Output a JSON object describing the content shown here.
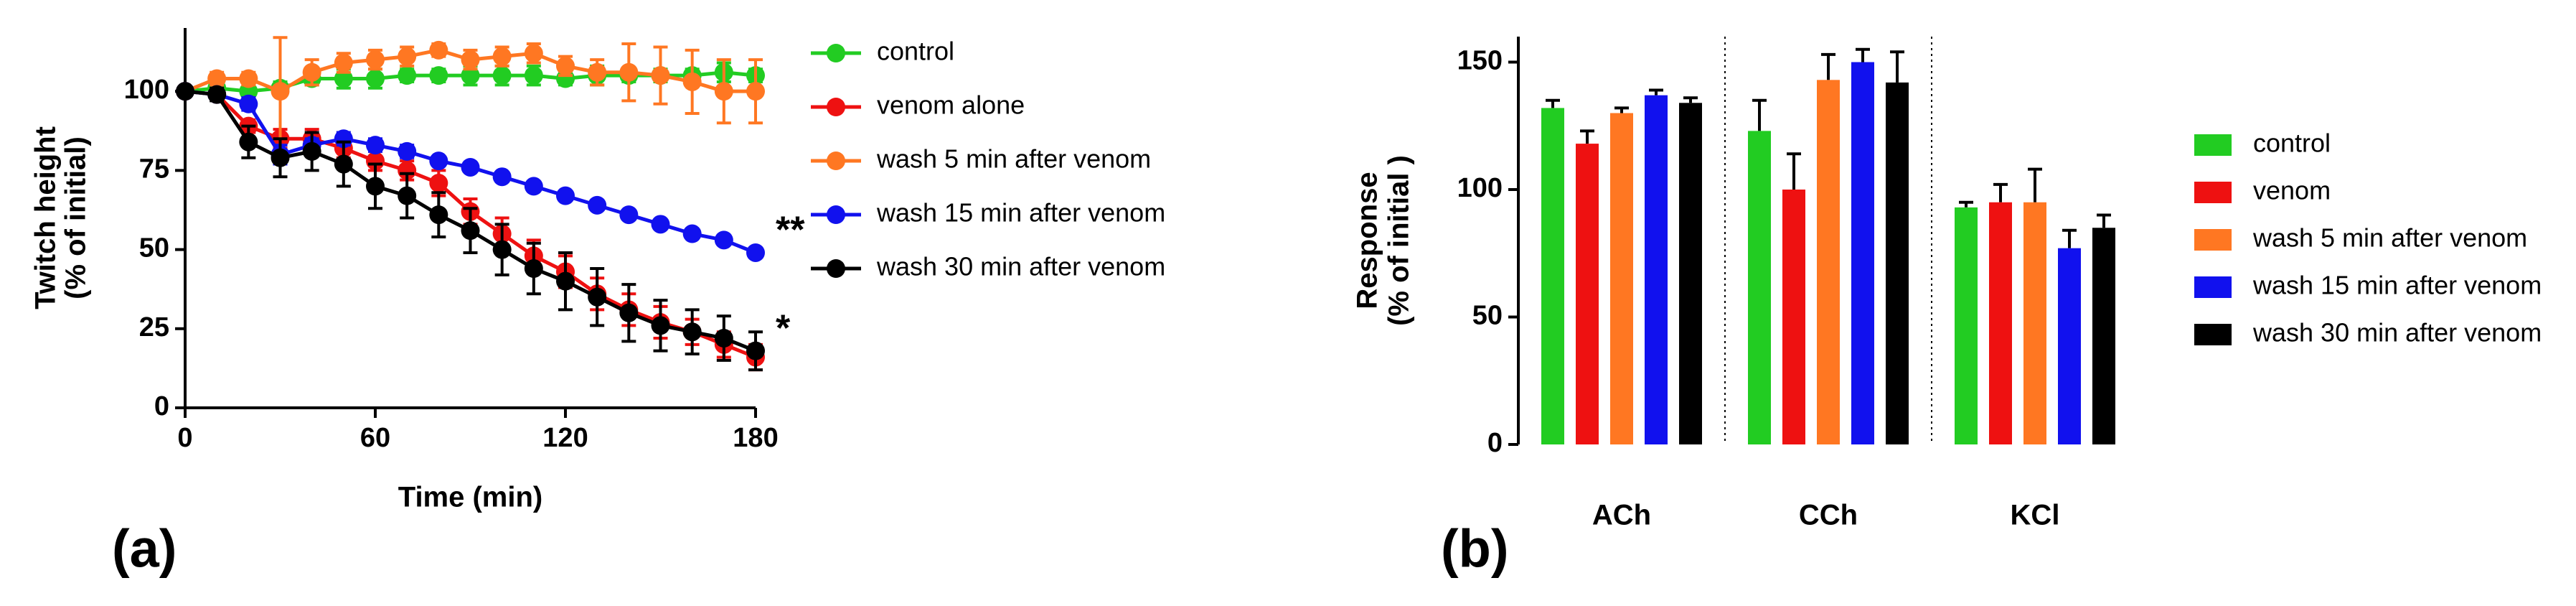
{
  "chart_data": [
    {
      "type": "line",
      "panel_label": "(a)",
      "xlabel": "Time (min)",
      "ylabel": [
        "Twitch height",
        "(% of initial)"
      ],
      "x": [
        0,
        10,
        20,
        30,
        40,
        50,
        60,
        70,
        80,
        90,
        100,
        110,
        120,
        130,
        140,
        150,
        160,
        170,
        180
      ],
      "xlim": [
        0,
        180
      ],
      "xticks": [
        0,
        60,
        120,
        180
      ],
      "ylim": [
        0,
        120
      ],
      "yticks": [
        0,
        25,
        50,
        75,
        100
      ],
      "series": [
        {
          "name": "control",
          "color": "#22cc22",
          "values": [
            100,
            101,
            100,
            101,
            104,
            104,
            104,
            105,
            105,
            105,
            105,
            105,
            104,
            105,
            105,
            105,
            105,
            106,
            105
          ],
          "errors": [
            0,
            1,
            1,
            2,
            2,
            3,
            3,
            2,
            2,
            3,
            3,
            3,
            2,
            3,
            2,
            2,
            2,
            3,
            2
          ]
        },
        {
          "name": "venom alone",
          "color": "#ee1111",
          "values": [
            100,
            99,
            89,
            85,
            85,
            82,
            78,
            75,
            71,
            62,
            55,
            48,
            43,
            36,
            31,
            27,
            24,
            20,
            16
          ],
          "errors": [
            0,
            1,
            2,
            3,
            3,
            3,
            3,
            3,
            4,
            4,
            5,
            5,
            5,
            5,
            5,
            5,
            4,
            4,
            4
          ]
        },
        {
          "name": "wash 5 min after venom",
          "color": "#ff7722",
          "values": [
            100,
            104,
            104,
            100,
            106,
            109,
            110,
            111,
            113,
            110,
            111,
            112,
            108,
            106,
            106,
            105,
            103,
            100,
            100
          ],
          "errors": [
            0,
            2,
            2,
            17,
            4,
            3,
            3,
            3,
            2,
            3,
            3,
            3,
            3,
            4,
            9,
            9,
            10,
            10,
            10
          ]
        },
        {
          "name": "wash 15 min after venom",
          "color": "#1111ee",
          "values": [
            100,
            99,
            96,
            80,
            83,
            85,
            83,
            81,
            78,
            76,
            73,
            70,
            67,
            64,
            61,
            58,
            55,
            53,
            49
          ],
          "errors": [
            0,
            1,
            2,
            3,
            2,
            2,
            2,
            2,
            1,
            1,
            1,
            1,
            1,
            1,
            1,
            1,
            1,
            1,
            1
          ],
          "annotation": "**"
        },
        {
          "name": "wash 30 min after venom",
          "color": "#000000",
          "values": [
            100,
            99,
            84,
            79,
            81,
            77,
            70,
            67,
            61,
            56,
            50,
            44,
            40,
            35,
            30,
            26,
            24,
            22,
            18
          ],
          "errors": [
            0,
            2,
            5,
            6,
            6,
            7,
            7,
            7,
            7,
            7,
            8,
            8,
            9,
            9,
            9,
            8,
            7,
            7,
            6
          ],
          "annotation": "*"
        }
      ]
    },
    {
      "type": "bar",
      "panel_label": "(b)",
      "ylabel": [
        "Response",
        "(% of initial )"
      ],
      "categories": [
        "ACh",
        "CCh",
        "KCl"
      ],
      "ylim": [
        0,
        160
      ],
      "yticks": [
        0,
        50,
        100,
        150
      ],
      "series": [
        {
          "name": "control",
          "color": "#22cc22",
          "values": [
            132,
            123,
            93
          ],
          "errors": [
            3,
            12,
            2
          ]
        },
        {
          "name": "venom",
          "color": "#ee1111",
          "values": [
            118,
            100,
            95
          ],
          "errors": [
            5,
            14,
            7
          ]
        },
        {
          "name": "wash 5 min after venom",
          "color": "#ff7722",
          "values": [
            130,
            143,
            95
          ],
          "errors": [
            2,
            10,
            13
          ]
        },
        {
          "name": "wash 15 min after venom",
          "color": "#1111ee",
          "values": [
            137,
            150,
            77
          ],
          "errors": [
            2,
            5,
            7
          ]
        },
        {
          "name": "wash 30 min after venom",
          "color": "#000000",
          "values": [
            134,
            142,
            85
          ],
          "errors": [
            2,
            12,
            5
          ]
        }
      ]
    }
  ]
}
